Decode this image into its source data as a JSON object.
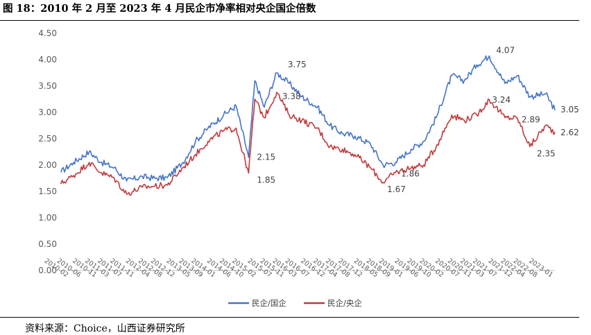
{
  "header": {
    "title": "图 18：2010 年 2 月至 2023 年 4 月民企市净率相对央企国企倍数"
  },
  "footer": {
    "source": "资料来源：Choice，山西证券研究所"
  },
  "colors": {
    "series_1": "#4472C4",
    "series_2": "#C0393B",
    "axis": "#BFBFBF",
    "text": "#595959"
  },
  "chart_data": {
    "type": "line",
    "title": "",
    "xlabel": "",
    "ylabel": "",
    "ylim": [
      0,
      4.5
    ],
    "yticks": [
      "0.00",
      "0.50",
      "1.00",
      "1.50",
      "2.00",
      "2.50",
      "3.00",
      "3.50",
      "4.00",
      "4.50"
    ],
    "grid": false,
    "legend_position": "bottom",
    "x_ticks": [
      "2010-02",
      "2010-06",
      "2010-11",
      "2011-03",
      "2011-07",
      "2011-11",
      "2012-04",
      "2012-08",
      "2012-12",
      "2013-05",
      "2013-09",
      "2014-01",
      "2014-06",
      "2014-10",
      "2015-02",
      "2015-07",
      "2015-11",
      "2016-03",
      "2016-07",
      "2016-12",
      "2017-04",
      "2017-08",
      "2017-12",
      "2018-05",
      "2018-09",
      "2019-01",
      "2019-06",
      "2019-10",
      "2020-02",
      "2020-07",
      "2020-11",
      "2021-03",
      "2021-07",
      "2021-12",
      "2022-04",
      "2022-08",
      "2023-01"
    ],
    "series": [
      {
        "name": "民企/国企",
        "x": [
          "2010-02",
          "2010-06",
          "2010-11",
          "2011-03",
          "2011-07",
          "2011-11",
          "2012-04",
          "2012-08",
          "2012-12",
          "2013-05",
          "2013-09",
          "2014-01",
          "2014-06",
          "2014-10",
          "2015-02",
          "2015-04",
          "2015-07",
          "2015-11",
          "2016-03",
          "2016-07",
          "2016-12",
          "2017-04",
          "2017-08",
          "2017-12",
          "2018-05",
          "2018-09",
          "2019-01",
          "2019-06",
          "2019-10",
          "2020-02",
          "2020-07",
          "2020-11",
          "2021-03",
          "2021-07",
          "2021-12",
          "2022-04",
          "2022-08",
          "2023-01",
          "2023-04"
        ],
        "values": [
          1.87,
          2.05,
          2.25,
          2.05,
          1.95,
          1.7,
          1.78,
          1.75,
          1.76,
          2.05,
          2.45,
          2.7,
          2.95,
          3.12,
          2.15,
          3.6,
          3.1,
          3.75,
          3.55,
          3.3,
          3.1,
          2.75,
          2.6,
          2.55,
          2.4,
          2.0,
          2.05,
          2.3,
          2.45,
          2.9,
          3.7,
          3.6,
          3.9,
          4.07,
          3.55,
          3.7,
          3.3,
          3.35,
          3.05
        ]
      },
      {
        "name": "民企/央企",
        "x": [
          "2010-02",
          "2010-06",
          "2010-11",
          "2011-03",
          "2011-07",
          "2011-11",
          "2012-04",
          "2012-08",
          "2012-12",
          "2013-05",
          "2013-09",
          "2014-01",
          "2014-06",
          "2014-10",
          "2015-02",
          "2015-04",
          "2015-07",
          "2015-11",
          "2016-03",
          "2016-07",
          "2016-12",
          "2017-04",
          "2017-08",
          "2017-12",
          "2018-05",
          "2018-09",
          "2019-01",
          "2019-06",
          "2019-10",
          "2020-02",
          "2020-07",
          "2020-11",
          "2021-03",
          "2021-07",
          "2021-12",
          "2022-04",
          "2022-08",
          "2023-01",
          "2023-04"
        ],
        "values": [
          1.65,
          1.8,
          2.05,
          1.85,
          1.75,
          1.45,
          1.58,
          1.6,
          1.62,
          1.95,
          2.2,
          2.45,
          2.65,
          2.7,
          1.85,
          3.25,
          2.9,
          3.38,
          2.95,
          2.85,
          2.7,
          2.35,
          2.3,
          2.2,
          1.95,
          1.67,
          1.86,
          1.95,
          2.0,
          2.35,
          2.95,
          2.85,
          2.95,
          3.24,
          2.9,
          2.89,
          2.35,
          2.75,
          2.62
        ]
      }
    ],
    "annotations": [
      {
        "text": "3.75",
        "x": "2015-11",
        "y": 3.75
      },
      {
        "text": "3.38",
        "x": "2015-11",
        "y": 3.38
      },
      {
        "text": "2.15",
        "x": "2015-02",
        "y": 2.15
      },
      {
        "text": "1.85",
        "x": "2015-02",
        "y": 1.85
      },
      {
        "text": "1.86",
        "x": "2019-01",
        "y": 1.86
      },
      {
        "text": "1.67",
        "x": "2018-09",
        "y": 1.67
      },
      {
        "text": "4.07",
        "x": "2021-07",
        "y": 4.07
      },
      {
        "text": "3.24",
        "x": "2021-07",
        "y": 3.24
      },
      {
        "text": "2.89",
        "x": "2022-04",
        "y": 2.89
      },
      {
        "text": "2.35",
        "x": "2022-08",
        "y": 2.35
      },
      {
        "text": "3.05",
        "x": "2023-04",
        "y": 3.05
      },
      {
        "text": "2.62",
        "x": "2023-04",
        "y": 2.62
      }
    ]
  }
}
